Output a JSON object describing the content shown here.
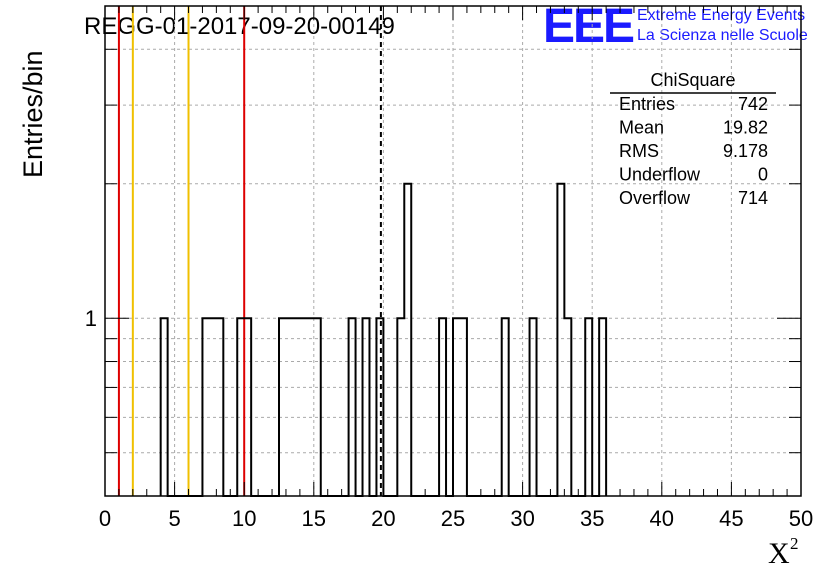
{
  "header": {
    "title": "REGG-01-2017-09-20-00149",
    "logo_text": "EEE",
    "logo_line1": "Extreme Energy Events",
    "logo_line2": "La Scienza nelle Scuole",
    "logo_color": "#1a1aff"
  },
  "chart_data": {
    "type": "bar",
    "histogram": true,
    "xlabel": "X",
    "xlabel_superscript": "2",
    "ylabel": "Entries/bin",
    "xlim": [
      0,
      50
    ],
    "ylim": [
      0.4,
      5
    ],
    "yscale": "log",
    "grid": true,
    "x_ticks": [
      "0",
      "5",
      "10",
      "15",
      "20",
      "25",
      "30",
      "35",
      "40",
      "45",
      "50"
    ],
    "y_tick_labels": [
      {
        "value": 1,
        "label": "1"
      }
    ],
    "bin_width": 0.5,
    "bin_starts": [
      4.0,
      7.0,
      7.5,
      8.0,
      9.5,
      10.0,
      12.5,
      13.0,
      13.5,
      14.0,
      14.5,
      15.0,
      17.5,
      18.5,
      19.5,
      21.0,
      21.5,
      24.0,
      25.0,
      25.5,
      28.5,
      30.5,
      32.5,
      33.0,
      34.5,
      35.5
    ],
    "bin_values": [
      1,
      1,
      1,
      1,
      1,
      1,
      1,
      1,
      1,
      1,
      1,
      1,
      1,
      1,
      1,
      1,
      2,
      1,
      1,
      1,
      1,
      1,
      2,
      1,
      1,
      1
    ],
    "reference_lines": [
      {
        "x": 1,
        "color": "#dd0000",
        "style": "solid"
      },
      {
        "x": 2,
        "color": "#f0c000",
        "style": "solid"
      },
      {
        "x": 6,
        "color": "#f0c000",
        "style": "solid"
      },
      {
        "x": 10,
        "color": "#dd0000",
        "style": "solid"
      },
      {
        "x": 19.82,
        "color": "#000000",
        "style": "dashed"
      }
    ],
    "stats_box": {
      "title": "ChiSquare",
      "rows": [
        {
          "label": "Entries",
          "value": "742"
        },
        {
          "label": "Mean",
          "value": "19.82"
        },
        {
          "label": "RMS",
          "value": "9.178"
        },
        {
          "label": "Underflow",
          "value": "0"
        },
        {
          "label": "Overflow",
          "value": "714"
        }
      ]
    }
  }
}
